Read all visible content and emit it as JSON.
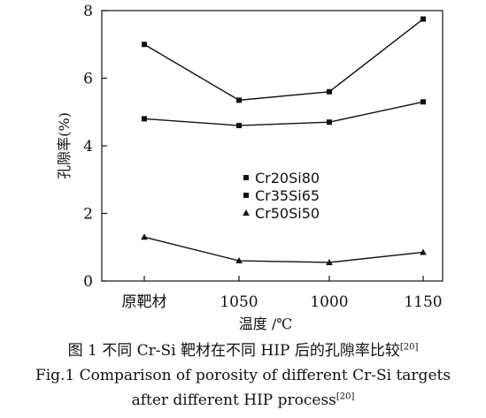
{
  "chart_data": {
    "type": "line",
    "categories": [
      "原靶材",
      "1050",
      "1000",
      "1150"
    ],
    "series": [
      {
        "name": "Cr20Si80",
        "marker": "square",
        "values": [
          7.0,
          5.35,
          5.6,
          7.75
        ]
      },
      {
        "name": "Cr35Si65",
        "marker": "square",
        "values": [
          4.8,
          4.6,
          4.7,
          5.3
        ]
      },
      {
        "name": "Cr50Si50",
        "marker": "triangle",
        "values": [
          1.3,
          0.6,
          0.55,
          0.85
        ]
      }
    ],
    "title": "",
    "xlabel": "温度 /℃",
    "ylabel": "孔隙率(%)",
    "ylim": [
      0,
      8
    ],
    "yticks": [
      0,
      2,
      4,
      6,
      8
    ],
    "grid": false,
    "legend_position": "center-right",
    "line_color": "#111111"
  },
  "caption": {
    "zh_main": "图 1   不同 Cr-Si 靶材在不同 HIP 后的孔隙率比较",
    "zh_ref": "[20]",
    "en_line1": "Fig.1   Comparison of porosity of different Cr-Si targets",
    "en_line2_main": "after different HIP process",
    "en_ref": "[20]"
  }
}
